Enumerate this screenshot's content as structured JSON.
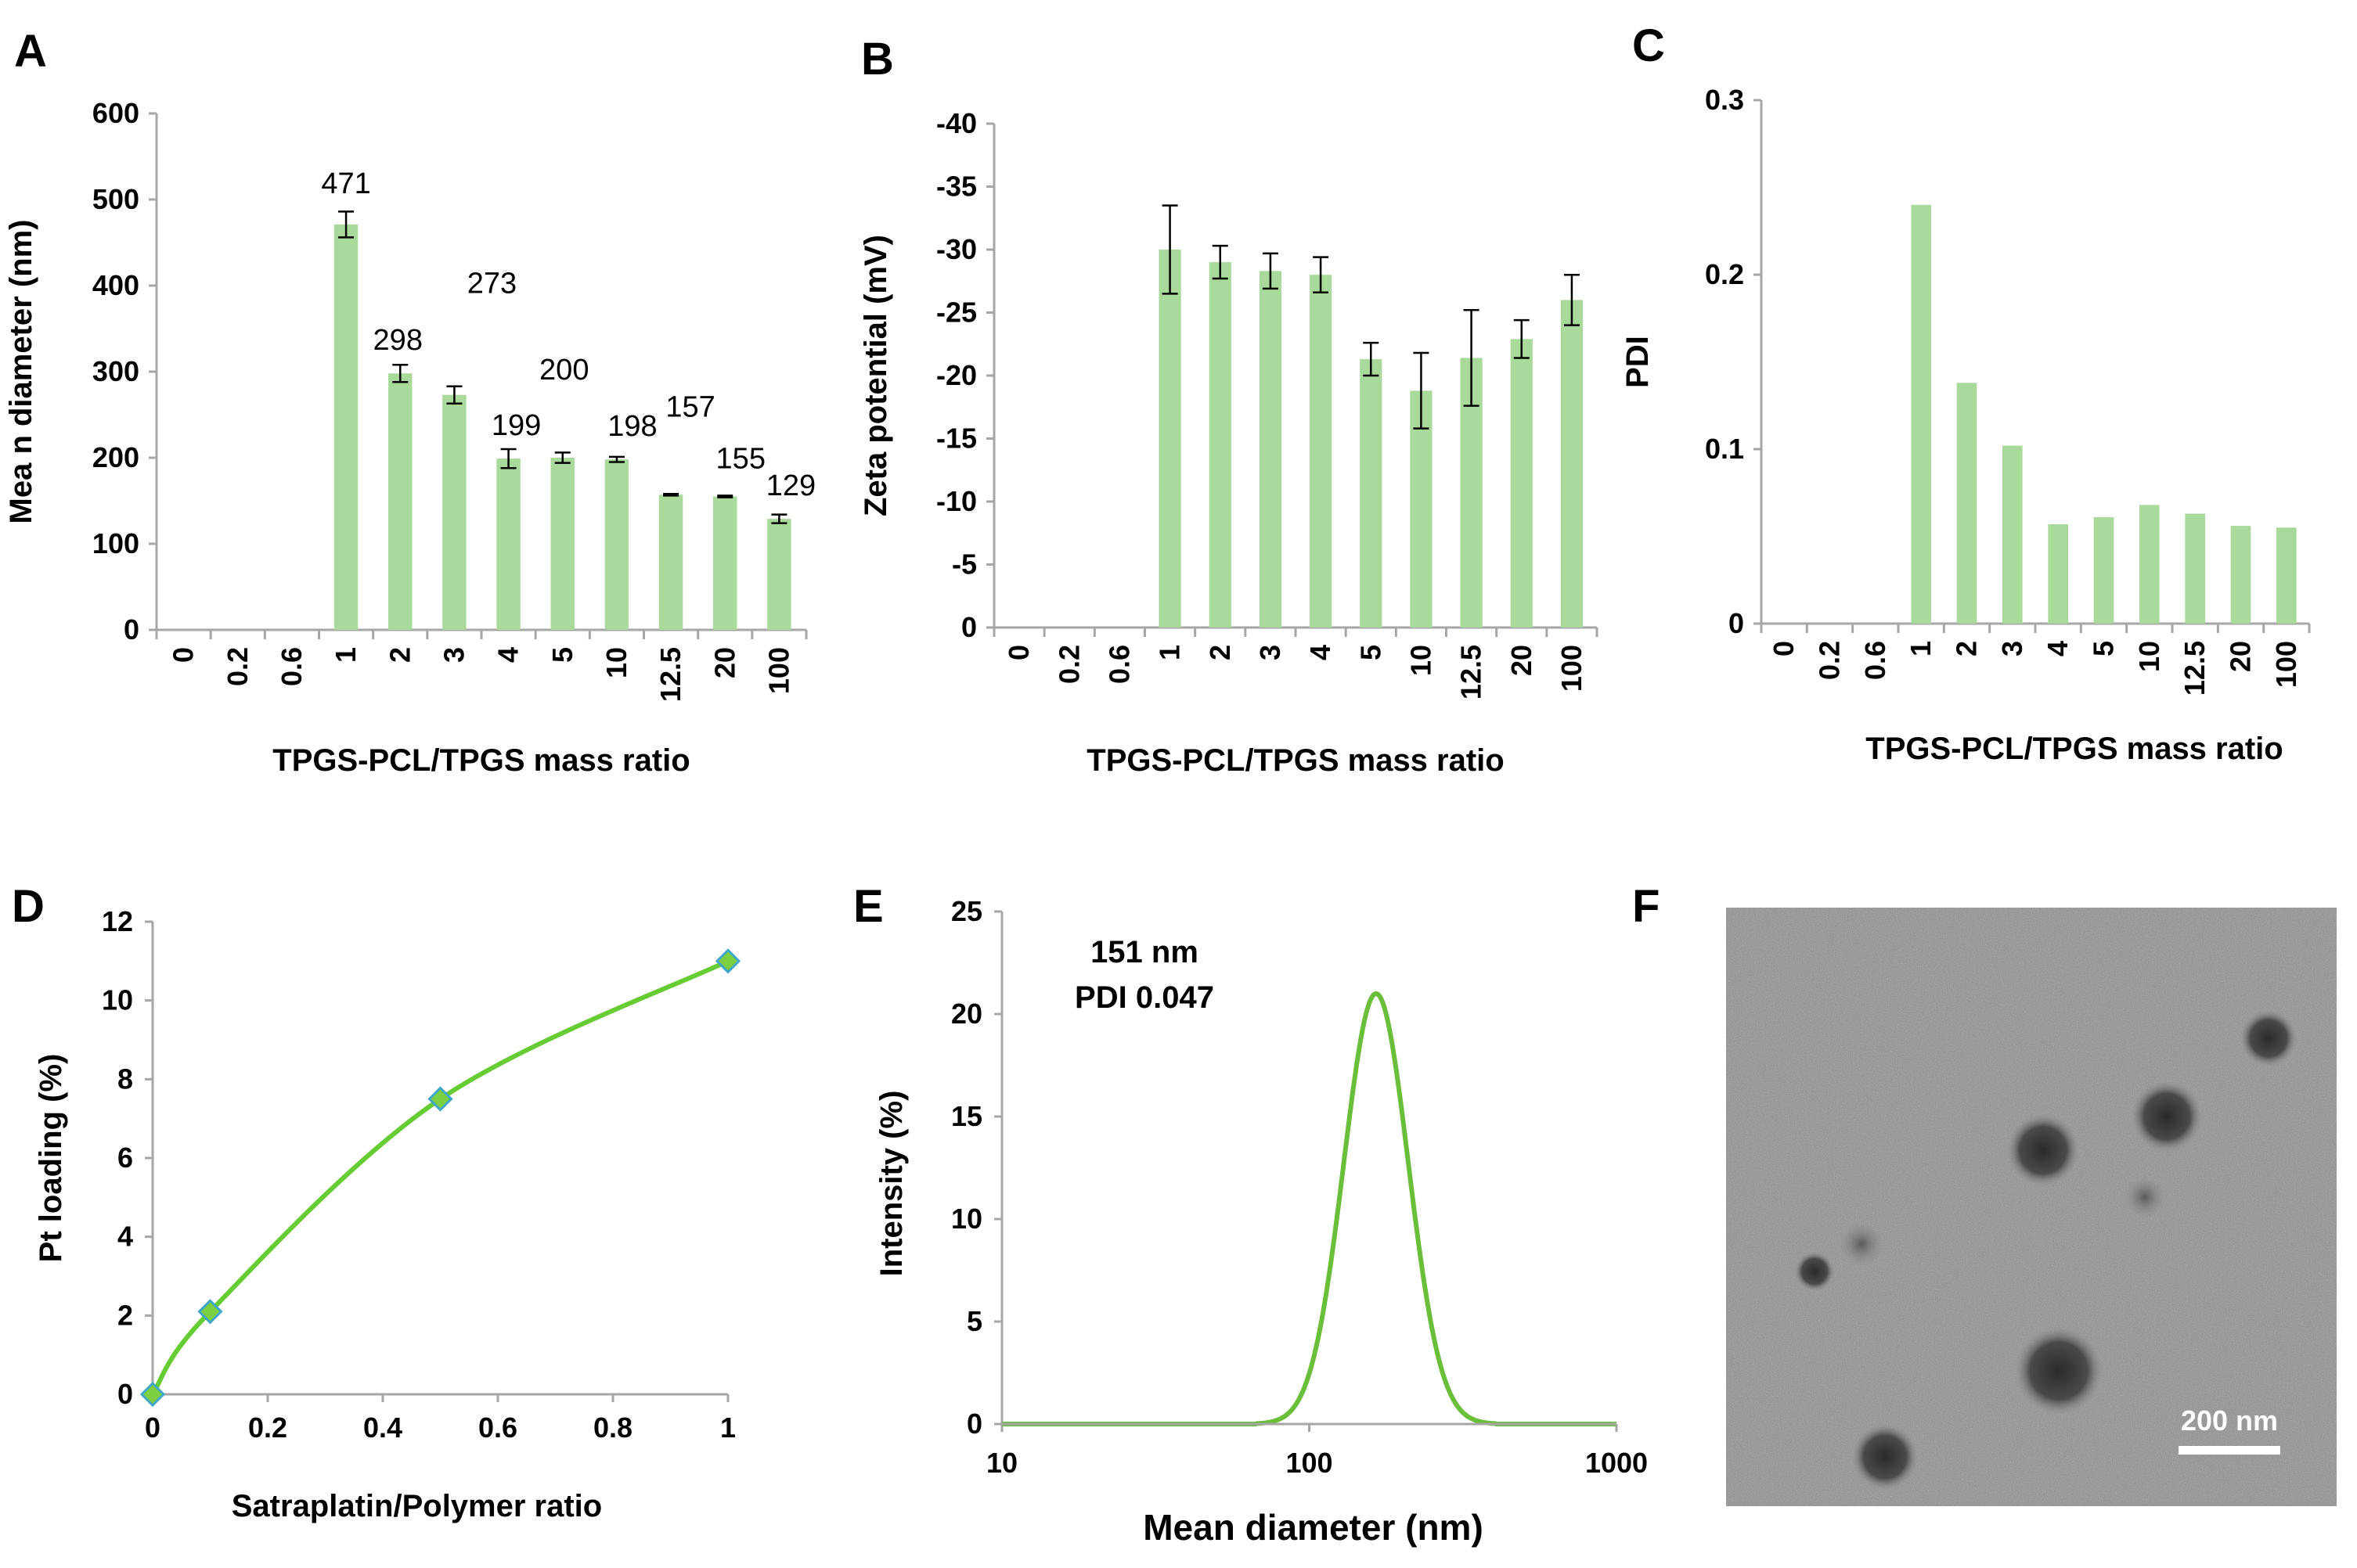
{
  "panels": {
    "A": {
      "letter": "A"
    },
    "B": {
      "letter": "B"
    },
    "C": {
      "letter": "C"
    },
    "D": {
      "letter": "D"
    },
    "E": {
      "letter": "E"
    },
    "F": {
      "letter": "F"
    }
  },
  "colors": {
    "bar": "#a9d99b",
    "line": "#66cc33",
    "marker": "#7ccf43",
    "marker_edge": "#3fa7c8",
    "axis": "#a6a6a6"
  },
  "chart_data": [
    {
      "id": "A",
      "type": "bar",
      "categories": [
        "0",
        "0.2",
        "0.6",
        "1",
        "2",
        "3",
        "4",
        "5",
        "10",
        "12.5",
        "20",
        "100"
      ],
      "values": [
        0,
        0,
        0,
        471,
        298,
        273,
        199,
        200,
        198,
        157,
        155,
        129
      ],
      "errors": [
        0,
        0,
        0,
        15,
        10,
        10,
        11,
        6,
        3,
        1,
        1,
        5
      ],
      "data_labels": [
        "",
        "",
        "",
        "471",
        "298",
        "273",
        "199",
        "200",
        "198",
        "157",
        "155",
        "129"
      ],
      "xlabel": "TPGS-PCL/TPGS mass ratio",
      "ylabel": "Mea n diameter (nm)",
      "ylim": [
        0,
        600
      ],
      "yticks": [
        "0",
        "100",
        "200",
        "300",
        "400",
        "500",
        "600"
      ]
    },
    {
      "id": "B",
      "type": "bar",
      "categories": [
        "0",
        "0.2",
        "0.6",
        "1",
        "2",
        "3",
        "4",
        "5",
        "10",
        "12.5",
        "20",
        "100"
      ],
      "values": [
        0,
        0,
        0,
        -30,
        -29,
        -28.3,
        -28,
        -21.3,
        -18.8,
        -21.4,
        -22.9,
        -26
      ],
      "errors": [
        0,
        0,
        0,
        3.5,
        1.3,
        1.4,
        1.4,
        1.3,
        3,
        3.8,
        1.5,
        2
      ],
      "xlabel": "TPGS-PCL/TPGS mass ratio",
      "ylabel": "Zeta potential (mV)",
      "ylim": [
        0,
        -40
      ],
      "yticks": [
        "0",
        "-5",
        "-10",
        "-15",
        "-20",
        "-25",
        "-30",
        "-35",
        "-40"
      ]
    },
    {
      "id": "C",
      "type": "bar",
      "categories": [
        "0",
        "0.2",
        "0.6",
        "1",
        "2",
        "3",
        "4",
        "5",
        "10",
        "12.5",
        "20",
        "100"
      ],
      "values": [
        0,
        0,
        0,
        0.24,
        0.138,
        0.102,
        0.057,
        0.061,
        0.068,
        0.063,
        0.056,
        0.055
      ],
      "xlabel": "TPGS-PCL/TPGS mass ratio",
      "ylabel": "PDI",
      "ylim": [
        0,
        0.3
      ],
      "yticks": [
        "0",
        "0.1",
        "0.2",
        "0.3"
      ]
    },
    {
      "id": "D",
      "type": "line",
      "x": [
        0,
        0.1,
        0.5,
        1
      ],
      "y": [
        0,
        2.1,
        7.5,
        11
      ],
      "xlabel": "Satraplatin/Polymer ratio",
      "ylabel": "Pt loading (%)",
      "xlim": [
        0,
        1
      ],
      "ylim": [
        0,
        12
      ],
      "xticks": [
        "0",
        "0.2",
        "0.4",
        "0.6",
        "0.8",
        "1"
      ],
      "yticks": [
        "0",
        "2",
        "4",
        "6",
        "8",
        "10",
        "12"
      ]
    },
    {
      "id": "E",
      "type": "line",
      "xscale": "log",
      "peak_x": 165,
      "peak_y": 21,
      "log_sigma": 0.105,
      "xlabel": "Mean diameter (nm)",
      "ylabel": "Intensity (%)",
      "xlim": [
        10,
        1000
      ],
      "ylim": [
        0,
        25
      ],
      "xticks": [
        "10",
        "100",
        "1000"
      ],
      "yticks": [
        "0",
        "5",
        "10",
        "15",
        "20",
        "25"
      ],
      "annotation": [
        "151 nm",
        "PDI 0.047"
      ]
    }
  ],
  "micrograph": {
    "scale_bar_label": "200 nm"
  }
}
